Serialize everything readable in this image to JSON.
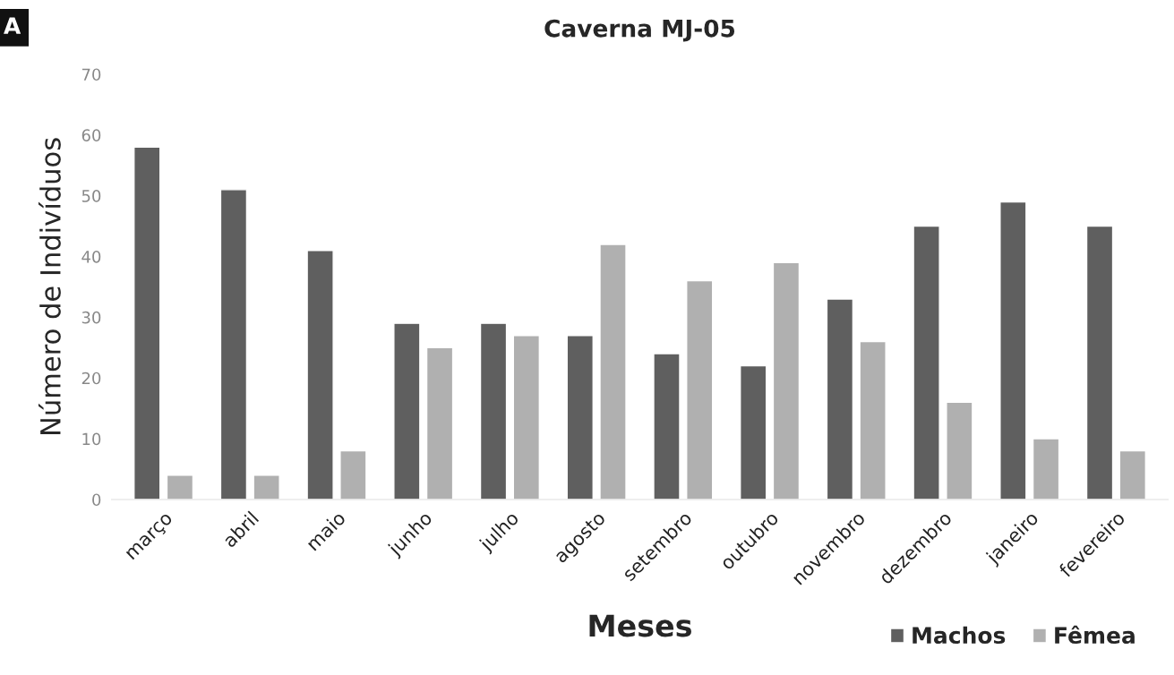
{
  "chart_data": {
    "type": "bar",
    "title": "Caverna MJ-05",
    "xlabel": "Meses",
    "ylabel": "Número de Indivíduos",
    "annotations": [
      "A"
    ],
    "categories": [
      "março",
      "abril",
      "maio",
      "junho",
      "julho",
      "agosto",
      "setembro",
      "outubro",
      "novembro",
      "dezembro",
      "janeiro",
      "fevereiro"
    ],
    "series": [
      {
        "name": "Machos",
        "color": "#5f5f5f",
        "values": [
          58,
          51,
          41,
          29,
          29,
          27,
          24,
          22,
          33,
          45,
          49,
          45
        ]
      },
      {
        "name": "Fêmea",
        "color": "#b0b0b0",
        "values": [
          4,
          4,
          8,
          25,
          27,
          42,
          36,
          39,
          26,
          16,
          10,
          8
        ]
      }
    ],
    "ylim": [
      0,
      70
    ],
    "yticks": [
      0,
      10,
      20,
      30,
      40,
      50,
      60,
      70
    ],
    "grid": false,
    "legend": "bottom right"
  }
}
